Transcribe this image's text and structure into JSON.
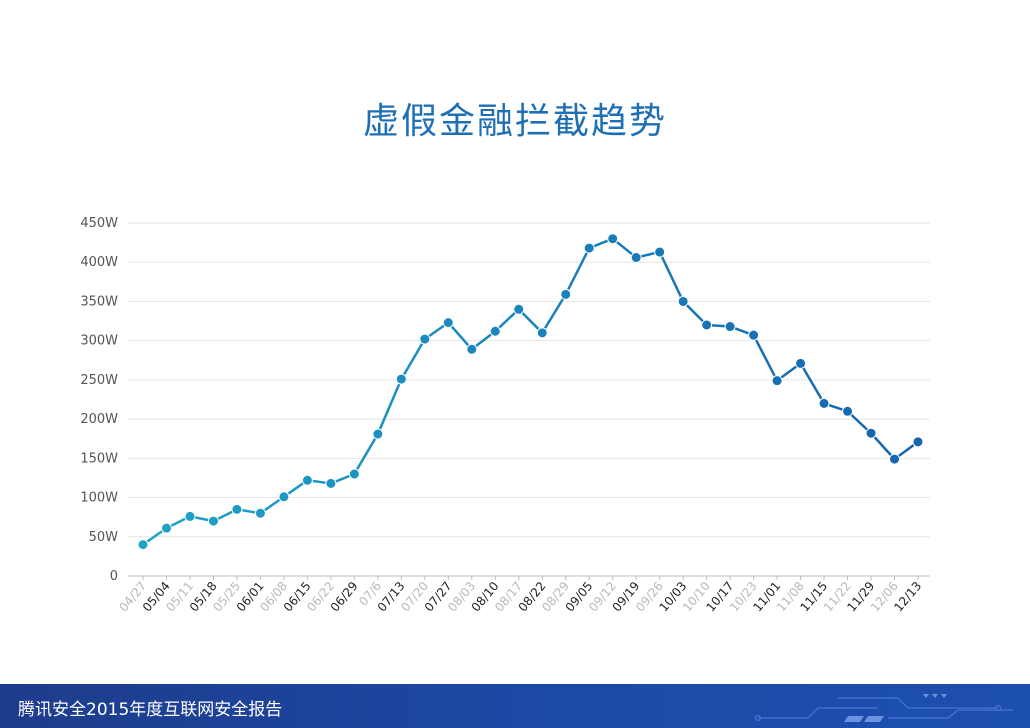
{
  "slide": {
    "title": "虚假金融拦截趋势"
  },
  "footer": {
    "text": "腾讯安全2015年度互联网安全报告"
  },
  "colors": {
    "title": "#1f6fb5",
    "line_start": "#1fa3c7",
    "line_end": "#1464b0",
    "tick_bold": "#222222",
    "tick_faint": "#b8b8b8",
    "grid": "#e6e6e6",
    "footer": "#1e3c8c"
  },
  "chart_data": {
    "type": "line",
    "title": "虚假金融拦截趋势",
    "xlabel": "",
    "ylabel": "",
    "ylim": [
      0,
      450
    ],
    "grid": true,
    "y_ticks": [
      {
        "value": 0,
        "label": "0"
      },
      {
        "value": 50,
        "label": "50W"
      },
      {
        "value": 100,
        "label": "100W"
      },
      {
        "value": 150,
        "label": "150W"
      },
      {
        "value": 200,
        "label": "200W"
      },
      {
        "value": 250,
        "label": "250W"
      },
      {
        "value": 300,
        "label": "300W"
      },
      {
        "value": 350,
        "label": "350W"
      },
      {
        "value": 400,
        "label": "400W"
      },
      {
        "value": 450,
        "label": "450W"
      }
    ],
    "categories": [
      "04/27",
      "05/04",
      "05/11",
      "05/18",
      "05/25",
      "06/01",
      "06/08",
      "06/15",
      "06/22",
      "06/29",
      "07/6",
      "07/13",
      "07/20",
      "07/27",
      "08/03",
      "08/10",
      "08/17",
      "08/22",
      "08/29",
      "09/05",
      "09/12",
      "09/19",
      "09/26",
      "10/03",
      "10/10",
      "10/17",
      "10/23",
      "11/01",
      "11/08",
      "11/15",
      "11/22",
      "11/29",
      "12/06",
      "12/13"
    ],
    "tick_bold": [
      false,
      true,
      false,
      true,
      false,
      true,
      false,
      true,
      false,
      true,
      false,
      true,
      false,
      true,
      false,
      true,
      false,
      true,
      false,
      true,
      false,
      true,
      false,
      true,
      false,
      true,
      false,
      true,
      false,
      true,
      false,
      true,
      false,
      true
    ],
    "values": [
      40,
      61,
      76,
      70,
      85,
      80,
      101,
      122,
      118,
      130,
      181,
      251,
      302,
      323,
      289,
      312,
      340,
      310,
      359,
      418,
      430,
      406,
      413,
      350,
      320,
      318,
      307,
      249,
      271,
      220,
      210,
      182,
      149,
      171
    ]
  }
}
